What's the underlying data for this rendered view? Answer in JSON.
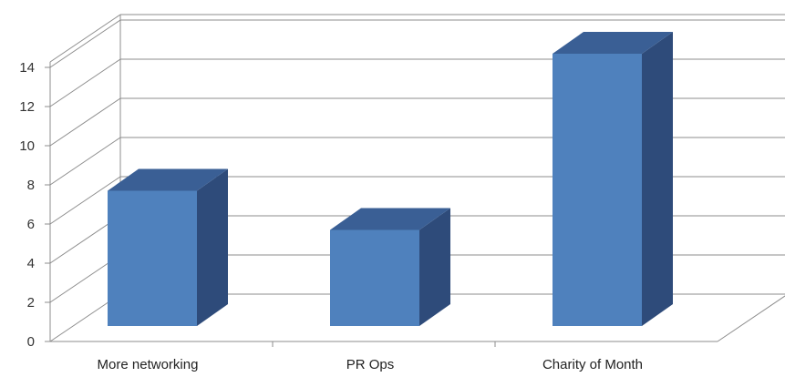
{
  "chart_data": {
    "type": "bar",
    "style": "3d-column",
    "categories": [
      "More networking",
      "PR Ops",
      "Charity of Month"
    ],
    "series": [
      {
        "values": [
          7,
          5,
          14
        ]
      }
    ],
    "title": "",
    "xlabel": "",
    "ylabel": "",
    "ylim": [
      0,
      14
    ],
    "yticks": [
      "0",
      "2",
      "4",
      "6",
      "8",
      "10",
      "12",
      "14"
    ],
    "grid": true,
    "legend": "none",
    "colors": {
      "bar_front": "#4F81BD",
      "bar_top": "#3A5F95",
      "bar_side": "#2E4B7A",
      "gridline": "#8C8C8C",
      "axis": "#8C8C8C"
    }
  }
}
